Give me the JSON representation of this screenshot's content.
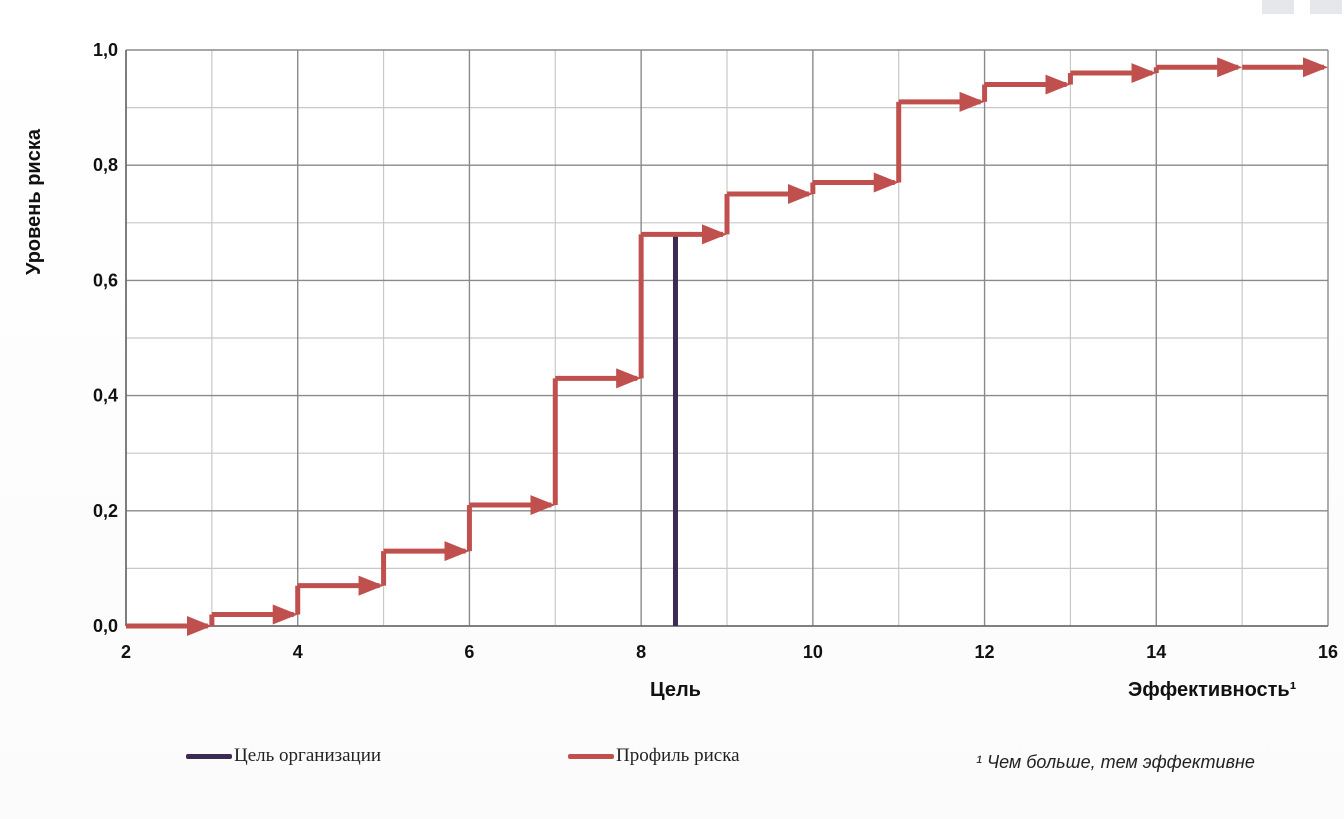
{
  "chart_data": {
    "type": "line",
    "title": "",
    "xlabel": "Цель",
    "xlabel_right": "Эффективность¹",
    "ylabel": "Уровень риска",
    "xlim": [
      2,
      16
    ],
    "ylim": [
      0,
      1
    ],
    "x_ticks": [
      2,
      4,
      6,
      8,
      10,
      12,
      14,
      16
    ],
    "y_ticks": [
      "0,0",
      "0,2",
      "0,4",
      "0,6",
      "0,8",
      "1,0"
    ],
    "grid": true,
    "legend_position": "bottom",
    "series": [
      {
        "name": "Профиль риска",
        "style": "step-with-arrows",
        "color": "#c0504d",
        "x": [
          2,
          3,
          4,
          5,
          6,
          7,
          8,
          9,
          10,
          11,
          12,
          13,
          14,
          15
        ],
        "values": [
          0.0,
          0.02,
          0.07,
          0.13,
          0.21,
          0.43,
          0.68,
          0.75,
          0.77,
          0.91,
          0.94,
          0.96,
          0.97,
          0.97
        ]
      },
      {
        "name": "Цель организации",
        "style": "vertical-line",
        "color": "#3b2b52",
        "x": 8.4,
        "values": [
          0.0,
          0.68
        ]
      }
    ],
    "footnote": "¹ Чем больше, тем эффективне"
  },
  "legend": [
    {
      "label": "Цель организации",
      "color": "#3b2b52"
    },
    {
      "label": "Профиль риска",
      "color": "#c0504d"
    }
  ]
}
